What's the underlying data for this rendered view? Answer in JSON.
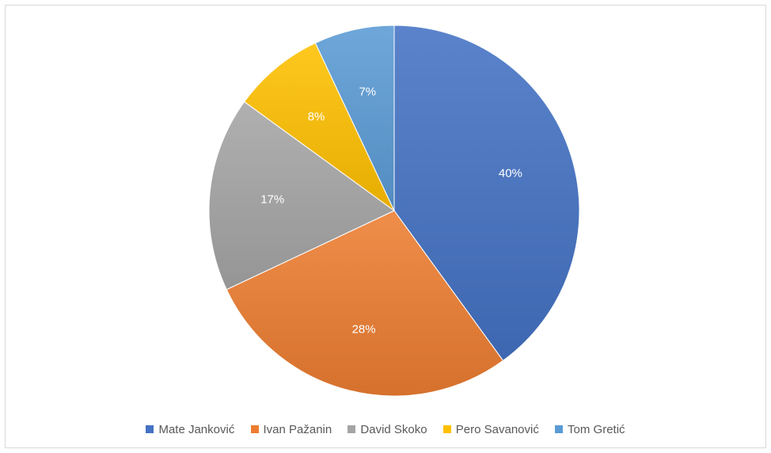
{
  "chart_data": {
    "type": "pie",
    "title": "",
    "categories": [
      "Mate Janković",
      "Ivan Pažanin",
      "David Skoko",
      "Pero Savanović",
      "Tom Gretić"
    ],
    "values": [
      40,
      28,
      17,
      8,
      7
    ],
    "data_labels": [
      "40%",
      "28%",
      "17%",
      "8%",
      "7%"
    ],
    "colors": [
      "#4472c4",
      "#ed7d31",
      "#a5a5a5",
      "#ffc000",
      "#5b9bd5"
    ],
    "legend_position": "bottom",
    "start_angle": "top",
    "direction": "clockwise"
  }
}
